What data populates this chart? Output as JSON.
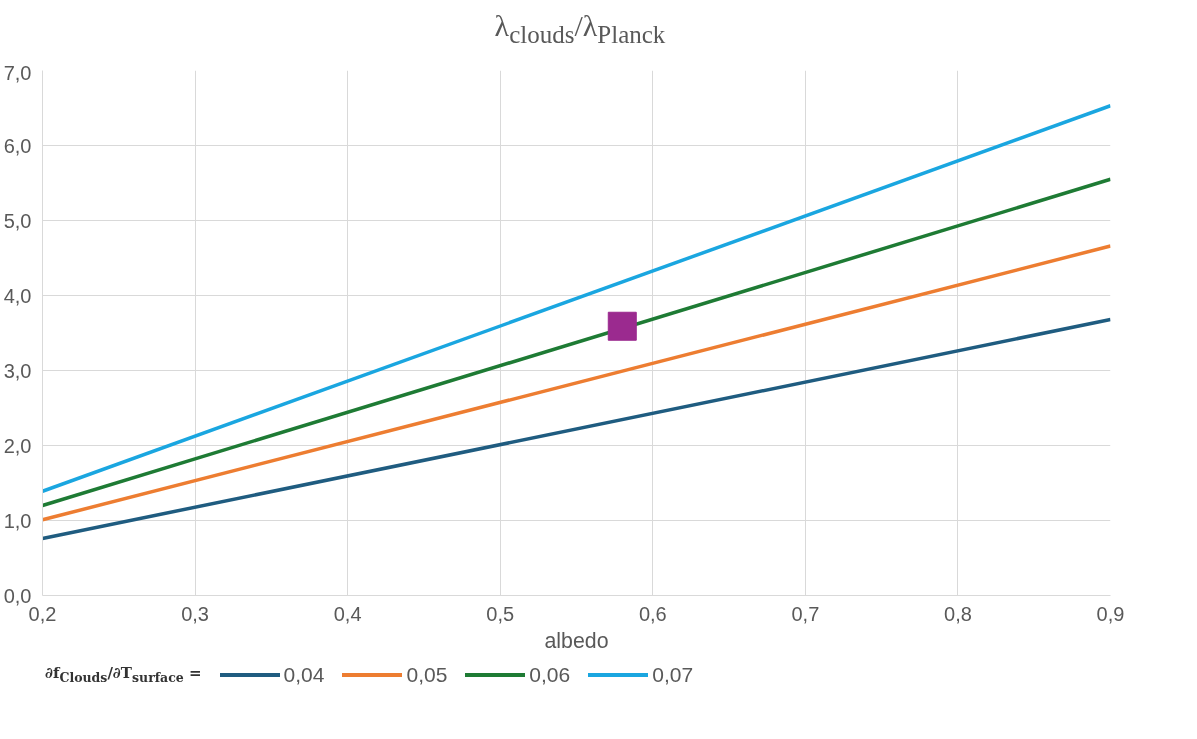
{
  "chart_data": {
    "type": "line",
    "title": "λ$_{clouds}$/λ$_{Planck}$",
    "xlabel": "albedo",
    "legend_title": "∂f$_{Clouds}$/∂T$_{surface}$ =",
    "x": [
      0.2,
      0.9
    ],
    "series": [
      {
        "name": "0,04",
        "color": "#1f5c80",
        "values": [
          0.76,
          3.68
        ]
      },
      {
        "name": "0,05",
        "color": "#ed7d31",
        "values": [
          1.01,
          4.66
        ]
      },
      {
        "name": "0,06",
        "color": "#1e7b34",
        "values": [
          1.2,
          5.55
        ]
      },
      {
        "name": "0,07",
        "color": "#1aa6e0",
        "values": [
          1.39,
          6.53
        ]
      },
      {
        "type": "scatter",
        "marker": "square",
        "color": "#9b2a8f",
        "x": [
          0.58
        ],
        "values": [
          3.59
        ]
      }
    ],
    "xlim": [
      0.2,
      0.9
    ],
    "ylim": [
      0,
      7
    ],
    "xticks": [
      {
        "value": 0.2,
        "label": "0,2"
      },
      {
        "value": 0.3,
        "label": "0,3"
      },
      {
        "value": 0.4,
        "label": "0,4"
      },
      {
        "value": 0.5,
        "label": "0,5"
      },
      {
        "value": 0.6,
        "label": "0,6"
      },
      {
        "value": 0.7,
        "label": "0,7"
      },
      {
        "value": 0.8,
        "label": "0,8"
      },
      {
        "value": 0.9,
        "label": "0,9"
      }
    ],
    "yticks": [
      {
        "value": 0,
        "label": "0,0"
      },
      {
        "value": 1,
        "label": "1,0"
      },
      {
        "value": 2,
        "label": "2,0"
      },
      {
        "value": 3,
        "label": "3,0"
      },
      {
        "value": 4,
        "label": "4,0"
      },
      {
        "value": 5,
        "label": "5,0"
      },
      {
        "value": 6,
        "label": "6,0"
      },
      {
        "value": 7,
        "label": "7,0"
      }
    ],
    "grid": true,
    "legend": "bottom",
    "marker": "none",
    "line_style": "solid"
  }
}
